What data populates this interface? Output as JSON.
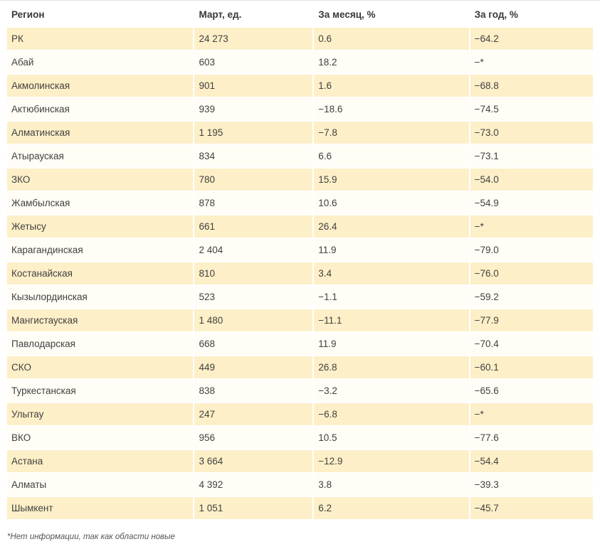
{
  "chart_data": {
    "type": "table",
    "columns": [
      "Регион",
      "Март, ед.",
      "За месяц, %",
      "За год, %"
    ],
    "rows": [
      [
        "РК",
        "24 273",
        "0.6",
        "−64.2"
      ],
      [
        "Абай",
        "603",
        "18.2",
        "−*"
      ],
      [
        "Акмолинская",
        "901",
        "1.6",
        "−68.8"
      ],
      [
        "Актюбинская",
        "939",
        "−18.6",
        "−74.5"
      ],
      [
        "Алматинская",
        "1 195",
        "−7.8",
        "−73.0"
      ],
      [
        "Атырауская",
        "834",
        "6.6",
        "−73.1"
      ],
      [
        "ЗКО",
        "780",
        "15.9",
        "−54.0"
      ],
      [
        "Жамбылская",
        "878",
        "10.6",
        "−54.9"
      ],
      [
        "Жетысу",
        "661",
        "26.4",
        "−*"
      ],
      [
        "Карагандинская",
        "2 404",
        "11.9",
        "−79.0"
      ],
      [
        "Костанайская",
        "810",
        "3.4",
        "−76.0"
      ],
      [
        "Кызылординская",
        "523",
        "−1.1",
        "−59.2"
      ],
      [
        "Мангистауская",
        "1 480",
        "−11.1",
        "−77.9"
      ],
      [
        "Павлодарская",
        "668",
        "11.9",
        "−70.4"
      ],
      [
        "СКО",
        "449",
        "26.8",
        "−60.1"
      ],
      [
        "Туркестанская",
        "838",
        "−3.2",
        "−65.6"
      ],
      [
        "Улытау",
        "247",
        "−6.8",
        "−*"
      ],
      [
        "ВКО",
        "956",
        "10.5",
        "−77.6"
      ],
      [
        "Астана",
        "3 664",
        "−12.9",
        "−54.4"
      ],
      [
        "Алматы",
        "4 392",
        "3.8",
        "−39.3"
      ],
      [
        "Шымкент",
        "1 051",
        "6.2",
        "−45.7"
      ]
    ],
    "footnote": "*Нет информации, так как области новые"
  },
  "colors": {
    "row_odd_bg": "#fdefc7",
    "row_even_bg": "#fffdf5",
    "header_text": "#383838",
    "body_text": "#414141",
    "footnote_text": "#555555",
    "top_border": "#e2e2e2"
  }
}
